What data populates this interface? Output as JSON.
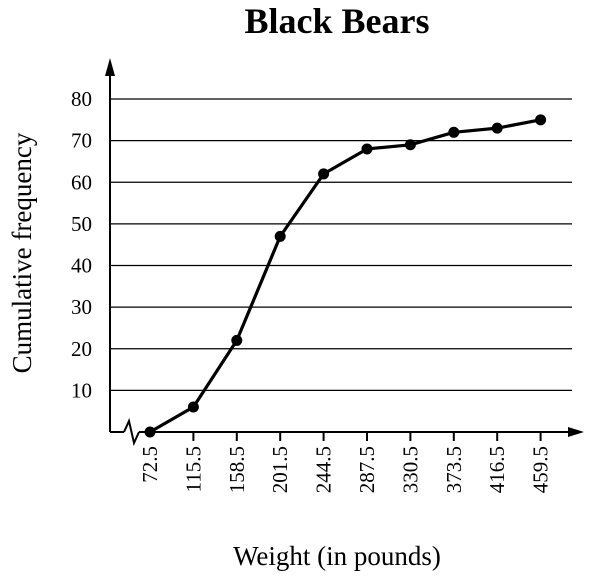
{
  "chart_data": {
    "type": "line",
    "title": "Black Bears",
    "xlabel": "Weight (in pounds)",
    "ylabel": "Cumulative frequency",
    "categories": [
      "72.5",
      "115.5",
      "158.5",
      "201.5",
      "244.5",
      "287.5",
      "330.5",
      "373.5",
      "416.5",
      "459.5"
    ],
    "values": [
      0,
      6,
      22,
      47,
      62,
      68,
      69,
      72,
      73,
      75
    ],
    "yticks": [
      10,
      20,
      30,
      40,
      50,
      60,
      70,
      80
    ],
    "ylim": [
      0,
      80
    ],
    "grid": true,
    "x_axis_break": true,
    "markers": "filled-circle"
  }
}
